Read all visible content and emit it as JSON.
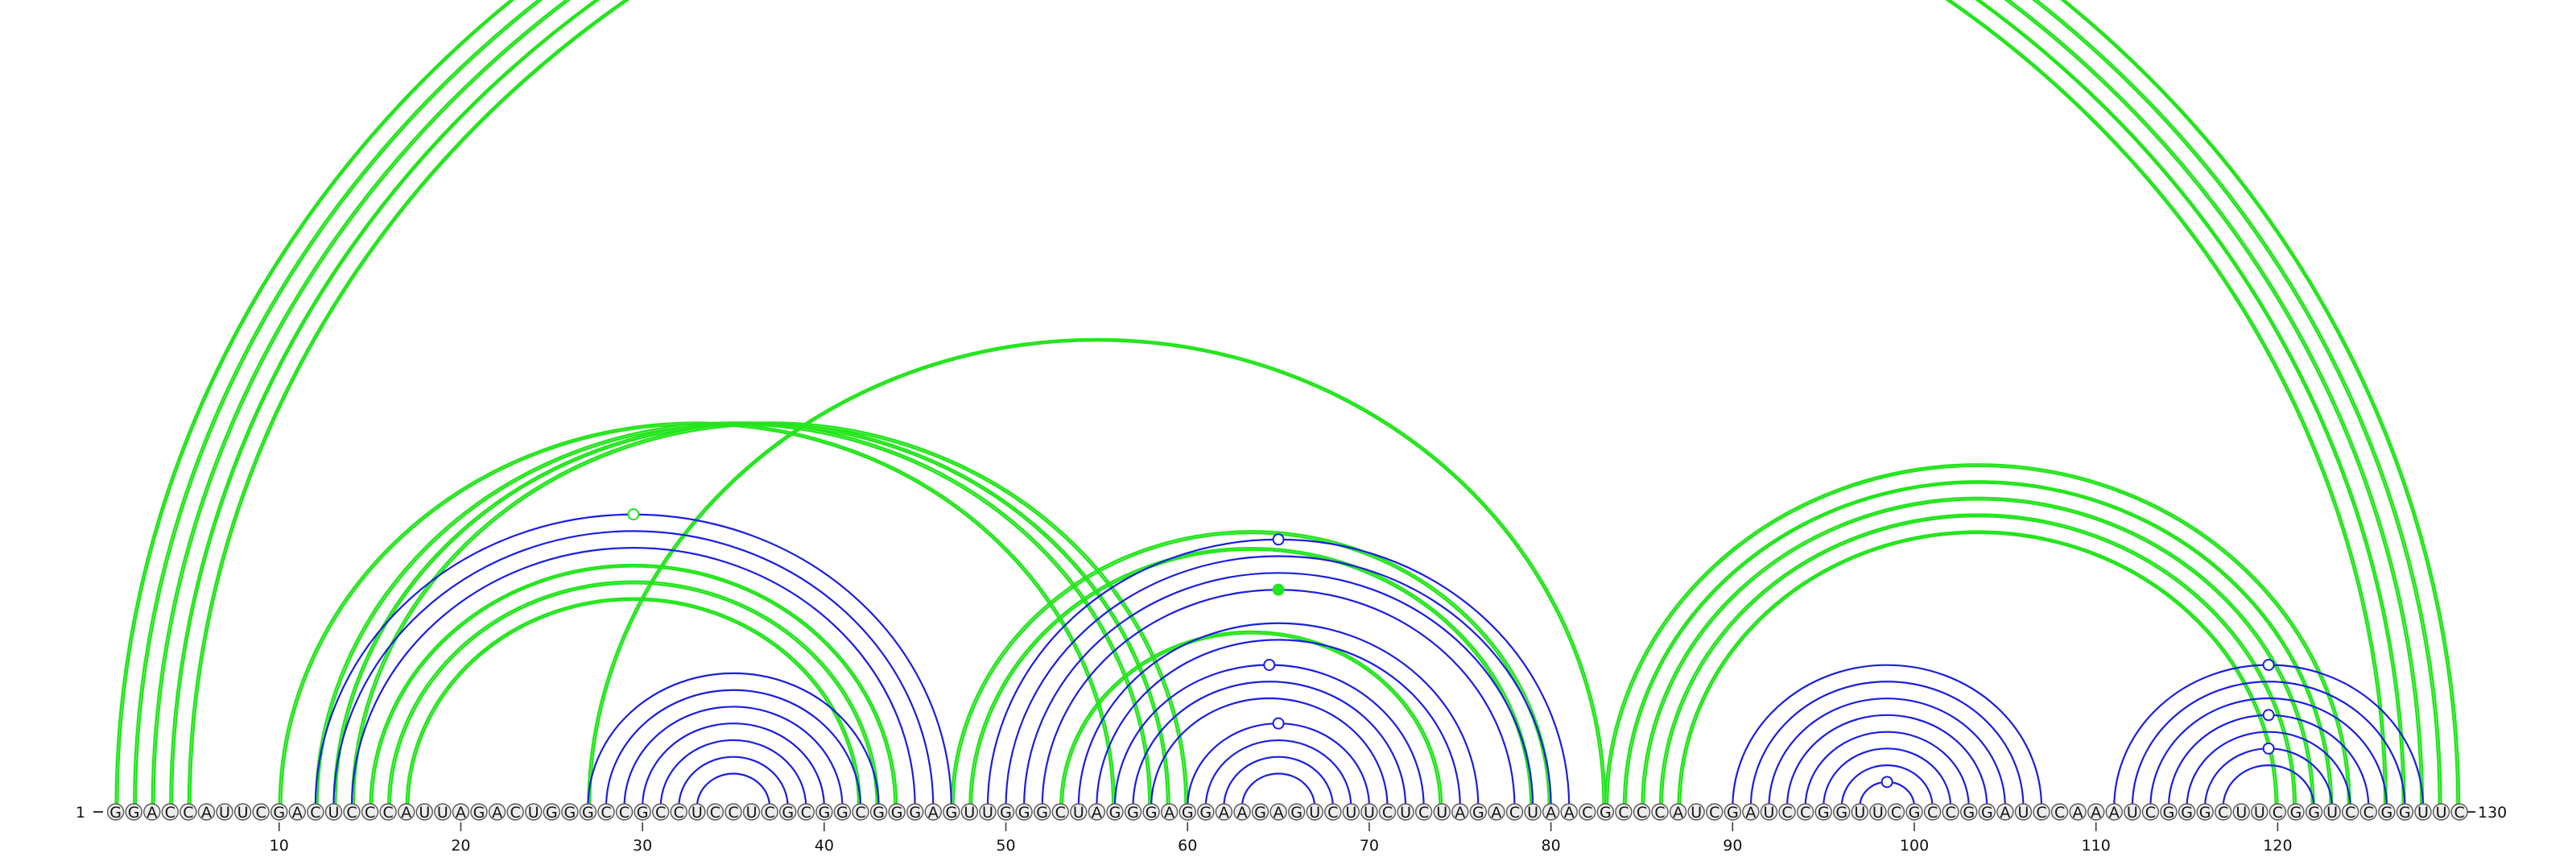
{
  "sequence": "GGACCAUUCGACUCCCAUUAGACUGGGCCGCCUCCUCGCGGCGGGAGUUGGGCUAGGGAGGAAGAGUCUUCUCUAGACUAACGCCCAUCGAUCCGGUUCGCCGGAUCCAAAUCGGGCUUCGGUCCGGUUC",
  "labels": {
    "start_number": "1",
    "end_number": "130",
    "ticks": [
      "10",
      "20",
      "30",
      "40",
      "50",
      "60",
      "70",
      "80",
      "90",
      "100",
      "110",
      "120"
    ]
  },
  "colors": {
    "green": "#22e51b",
    "blue": "#1c1ee0",
    "nucleotide_fill": "#ececec",
    "nucleotide_stroke": "#555555"
  },
  "arcs": {
    "green_pairs": [
      [
        1,
        130
      ],
      [
        2,
        129
      ],
      [
        3,
        128
      ],
      [
        4,
        127
      ],
      [
        5,
        126
      ],
      [
        10,
        56
      ],
      [
        12,
        58
      ],
      [
        13,
        59
      ],
      [
        14,
        60
      ],
      [
        15,
        44
      ],
      [
        16,
        43
      ],
      [
        17,
        42
      ],
      [
        27,
        83
      ],
      [
        47,
        80
      ],
      [
        48,
        79
      ],
      [
        53,
        74
      ],
      [
        83,
        124
      ],
      [
        84,
        123
      ],
      [
        85,
        122
      ],
      [
        86,
        121
      ],
      [
        87,
        120
      ]
    ],
    "blue_pairs": [
      [
        12,
        47
      ],
      [
        13,
        46
      ],
      [
        14,
        45
      ],
      [
        27,
        43
      ],
      [
        28,
        42
      ],
      [
        29,
        41
      ],
      [
        30,
        40
      ],
      [
        31,
        39
      ],
      [
        32,
        38
      ],
      [
        33,
        37
      ],
      [
        49,
        81
      ],
      [
        50,
        80
      ],
      [
        51,
        79
      ],
      [
        52,
        78
      ],
      [
        54,
        76
      ],
      [
        55,
        75
      ],
      [
        56,
        73
      ],
      [
        57,
        72
      ],
      [
        58,
        71
      ],
      [
        60,
        70
      ],
      [
        61,
        69
      ],
      [
        62,
        68
      ],
      [
        63,
        67
      ],
      [
        90,
        107
      ],
      [
        91,
        106
      ],
      [
        92,
        105
      ],
      [
        93,
        104
      ],
      [
        94,
        103
      ],
      [
        95,
        102
      ],
      [
        96,
        101
      ],
      [
        97,
        100
      ],
      [
        111,
        128
      ],
      [
        112,
        127
      ],
      [
        113,
        126
      ],
      [
        114,
        125
      ],
      [
        115,
        124
      ],
      [
        116,
        123
      ],
      [
        117,
        122
      ]
    ],
    "markers": [
      {
        "pair": [
          1,
          130
        ],
        "color": "green",
        "filled": false
      },
      [
        65,
        65
      ]
    ]
  }
}
